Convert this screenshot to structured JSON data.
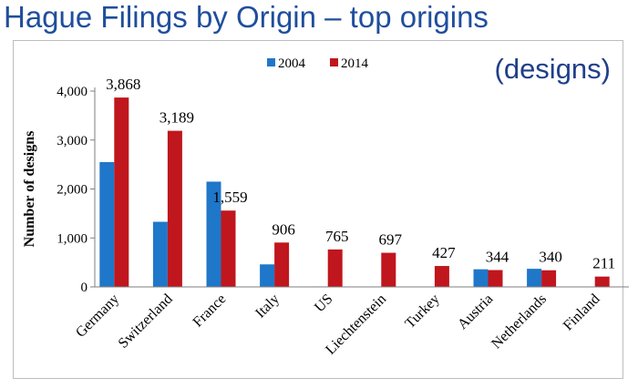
{
  "page_title": "Hague Filings by Origin – top origins",
  "colors": {
    "2004": "#1f77c9",
    "2014": "#c0161d",
    "title": "#1f4e9c"
  },
  "chart_data": {
    "type": "bar",
    "title": "Hague Filings by Origin – top origins",
    "subtitle": "(designs)",
    "xlabel": "",
    "ylabel": "Number of designs",
    "ylim": [
      0,
      4000
    ],
    "yticks": [
      0,
      1000,
      2000,
      3000,
      4000
    ],
    "ytick_labels": [
      "0",
      "1,000",
      "2,000",
      "3,000",
      "4,000"
    ],
    "grid": false,
    "legend_position": "top-center",
    "categories": [
      "Germany",
      "Switzerland",
      "France",
      "Italy",
      "US",
      "Liechtenstein",
      "Turkey",
      "Austria",
      "Netherlands",
      "Finland"
    ],
    "series": [
      {
        "name": "2004",
        "values": [
          2550,
          1330,
          2150,
          460,
          10,
          0,
          0,
          360,
          370,
          0
        ]
      },
      {
        "name": "2014",
        "values": [
          3868,
          3189,
          1559,
          906,
          765,
          697,
          427,
          344,
          340,
          211
        ]
      }
    ],
    "data_labels": [
      "3,868",
      "3,189",
      "1,559",
      "906",
      "765",
      "697",
      "427",
      "344",
      "340",
      "211"
    ]
  }
}
